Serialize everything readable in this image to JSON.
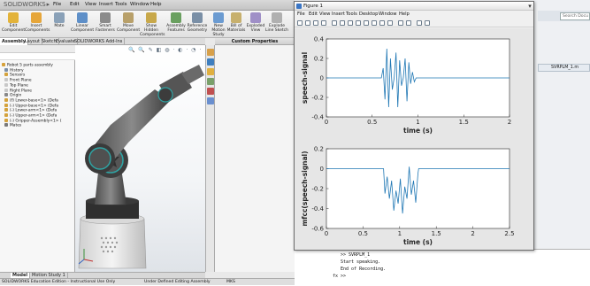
{
  "solidworks": {
    "logo": "SOLIDWORKS",
    "logo_suffix": "▸",
    "menu": [
      "File",
      "Edit",
      "View",
      "Insert",
      "Tools",
      "Window",
      "Help"
    ],
    "ribbon": [
      {
        "label": "Edit Component",
        "icon": "edit-component-icon",
        "color": "#e3b33a"
      },
      {
        "label": "Insert Components",
        "icon": "insert-components-icon",
        "color": "#e6a63a"
      },
      {
        "label": "Mate",
        "icon": "mate-icon",
        "color": "#8aa1b8"
      },
      {
        "label": "Linear Component",
        "icon": "linear-pattern-icon",
        "color": "#5e8fc8"
      },
      {
        "label": "Smart Fasteners",
        "icon": "smart-fasteners-icon",
        "color": "#8b8b8b"
      },
      {
        "label": "Move Component",
        "icon": "move-component-icon",
        "color": "#b8a06a"
      },
      {
        "label": "Show Hidden Components",
        "icon": "show-hidden-icon",
        "color": "#c8a84a"
      },
      {
        "label": "Assembly Features",
        "icon": "assembly-features-icon",
        "color": "#6aa060"
      },
      {
        "label": "Reference Geometry",
        "icon": "reference-geometry-icon",
        "color": "#7a8fa6"
      },
      {
        "label": "New Motion Study",
        "icon": "motion-study-icon",
        "color": "#6b9bd1"
      },
      {
        "label": "Bill of Materials",
        "icon": "bom-icon",
        "color": "#c7b06d"
      },
      {
        "label": "Exploded View",
        "icon": "exploded-view-icon",
        "color": "#9f8fc7"
      },
      {
        "label": "Explode Line Sketch",
        "icon": "explode-line-icon",
        "color": "#b0b0b0"
      }
    ],
    "tabs": [
      "Assembly",
      "Layout",
      "Sketch",
      "Evaluate",
      "SOLIDWORKS Add-Ins"
    ],
    "active_tab": "Assembly",
    "custom_properties": "Custom Properties",
    "tree": [
      {
        "label": "Robot 5 parts assembly",
        "icon": "assembly-icon",
        "color": "#d6a13a",
        "indent": 0
      },
      {
        "label": "History",
        "icon": "history-icon",
        "color": "#7b8fa8",
        "indent": 1
      },
      {
        "label": "Sensors",
        "icon": "sensors-icon",
        "color": "#d4a23c",
        "indent": 1
      },
      {
        "label": "Front Plane",
        "icon": "plane-icon",
        "color": "#c8c8c8",
        "indent": 1
      },
      {
        "label": "Top Plane",
        "icon": "plane-icon",
        "color": "#c8c8c8",
        "indent": 1
      },
      {
        "label": "Right Plane",
        "icon": "plane-icon",
        "color": "#c8c8c8",
        "indent": 1
      },
      {
        "label": "Origin",
        "icon": "origin-icon",
        "color": "#888888",
        "indent": 1
      },
      {
        "label": "(f) Lower-base<1> (Defa",
        "icon": "part-icon",
        "color": "#d4a23c",
        "indent": 1
      },
      {
        "label": "(-) Upper-base<1> (Defa",
        "icon": "part-icon",
        "color": "#d4a23c",
        "indent": 1
      },
      {
        "label": "(-) Lower-arm<1> (Defa",
        "icon": "part-icon",
        "color": "#d4a23c",
        "indent": 1
      },
      {
        "label": "(-) Upper-arm<1> (Defa",
        "icon": "part-icon",
        "color": "#d4a23c",
        "indent": 1
      },
      {
        "label": "(-) Gripper-Assembly<1> (",
        "icon": "part-icon",
        "color": "#d4a23c",
        "indent": 1
      },
      {
        "label": "Mates",
        "icon": "mates-icon",
        "color": "#7a7a7a",
        "indent": 1
      }
    ],
    "bottom_tabs": [
      "Model",
      "Motion Study 1"
    ],
    "status": {
      "edition": "SOLIDWORKS Education Edition - Instructional Use Only",
      "state": "Under Defined",
      "mode": "Editing Assembly",
      "units": "MKS"
    }
  },
  "figure": {
    "title": "Figure 1",
    "menu": [
      "File",
      "Edit",
      "View",
      "Insert",
      "Tools",
      "Desktop",
      "Window",
      "Help"
    ]
  },
  "matlab": {
    "search_placeholder": "Search Docu",
    "editor_tab": "SVRPLM_1.m",
    "command_lines": [
      ">> SVRPLM_1",
      "Start speaking.",
      "End of Recording."
    ],
    "prompt": "fx >>"
  },
  "chart_data": [
    {
      "type": "line",
      "title": "",
      "xlabel": "time (s)",
      "ylabel": "speech-signal",
      "xlim": [
        0,
        2
      ],
      "ylim": [
        -0.4,
        0.4
      ],
      "xticks": [
        0,
        0.5,
        1,
        1.5,
        2
      ],
      "yticks": [
        -0.4,
        -0.2,
        0,
        0.2,
        0.4
      ],
      "grid": false,
      "series": [
        {
          "color": "#1f77b4",
          "x": [
            0.0,
            0.3,
            0.6,
            0.62,
            0.64,
            0.66,
            0.68,
            0.7,
            0.72,
            0.74,
            0.76,
            0.78,
            0.8,
            0.82,
            0.84,
            0.86,
            0.88,
            0.9,
            0.92,
            0.94,
            0.96,
            0.98,
            1.0,
            1.5,
            2.0
          ],
          "y": [
            0.0,
            0.0,
            0.0,
            0.1,
            -0.22,
            0.3,
            -0.3,
            0.2,
            -0.12,
            0.0,
            0.26,
            -0.3,
            0.18,
            -0.08,
            0.0,
            0.2,
            -0.24,
            0.16,
            -0.06,
            0.06,
            -0.04,
            0.0,
            0.0,
            0.0,
            0.0
          ]
        }
      ]
    },
    {
      "type": "line",
      "title": "",
      "xlabel": "time (s)",
      "ylabel": "mfcc(speech-signal)",
      "xlim": [
        0,
        2.5
      ],
      "ylim": [
        -0.6,
        0.2
      ],
      "xticks": [
        0,
        0.5,
        1,
        1.5,
        2,
        2.5
      ],
      "yticks": [
        -0.6,
        -0.4,
        -0.2,
        0,
        0.2
      ],
      "grid": false,
      "series": [
        {
          "color": "#1f77b4",
          "x": [
            0.0,
            0.5,
            0.78,
            0.8,
            0.83,
            0.86,
            0.89,
            0.92,
            0.95,
            0.98,
            1.01,
            1.04,
            1.07,
            1.1,
            1.13,
            1.16,
            1.19,
            1.22,
            1.25,
            1.26,
            1.5,
            2.0,
            2.5
          ],
          "y": [
            0.0,
            0.0,
            0.0,
            -0.25,
            -0.08,
            -0.3,
            -0.12,
            -0.42,
            -0.22,
            -0.35,
            -0.1,
            -0.45,
            -0.18,
            -0.3,
            0.02,
            -0.26,
            -0.12,
            -0.34,
            -0.05,
            0.0,
            0.0,
            0.0,
            0.0
          ]
        }
      ]
    }
  ]
}
